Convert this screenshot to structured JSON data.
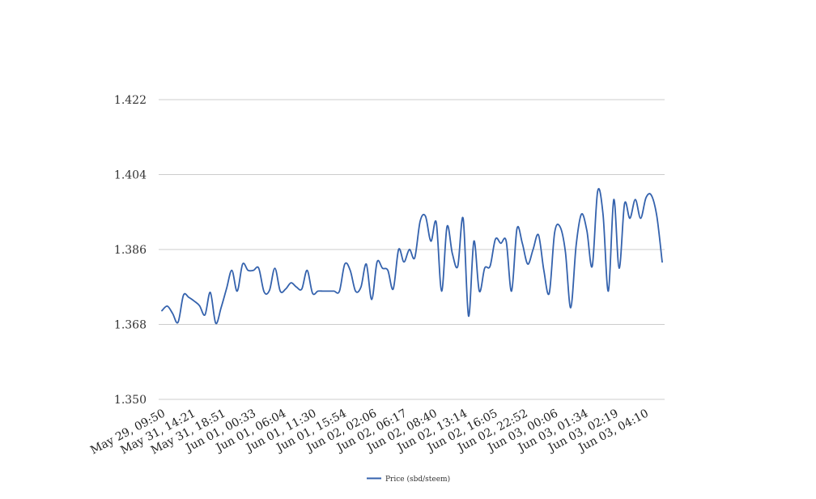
{
  "chart_data": {
    "type": "line",
    "title": "",
    "xlabel": "",
    "ylabel": "",
    "ylim": [
      1.35,
      1.422
    ],
    "yticks": [
      "1.350",
      "1.368",
      "1.386",
      "1.404",
      "1.422"
    ],
    "ytick_values": [
      1.35,
      1.368,
      1.386,
      1.404,
      1.422
    ],
    "x_tick_labels": [
      "May 29, 09:50",
      "May 31, 14:21",
      "May 31, 18:51",
      "Jun 01, 00:33",
      "Jun 01, 06:04",
      "Jun 01, 11:30",
      "Jun 01, 15:54",
      "Jun 02, 02:06",
      "Jun 02, 06:17",
      "Jun 02, 08:40",
      "Jun 02, 13:14",
      "Jun 02, 16:05",
      "Jun 02, 22:52",
      "Jun 03, 00:06",
      "Jun 03, 01:34",
      "Jun 03, 02:19",
      "Jun 03, 04:10"
    ],
    "grid": true,
    "legend_position": "bottom-center",
    "series": [
      {
        "name": "Price (sbd/steem)",
        "color": "#3462ad",
        "values": [
          1.3713,
          1.3724,
          1.3706,
          1.3685,
          1.375,
          1.3745,
          1.3736,
          1.3725,
          1.3703,
          1.3757,
          1.3683,
          1.372,
          1.3765,
          1.381,
          1.376,
          1.3825,
          1.381,
          1.381,
          1.3815,
          1.3758,
          1.3762,
          1.3815,
          1.376,
          1.3765,
          1.378,
          1.377,
          1.3765,
          1.381,
          1.3755,
          1.376,
          1.376,
          1.376,
          1.376,
          1.376,
          1.3825,
          1.381,
          1.376,
          1.377,
          1.3825,
          1.374,
          1.383,
          1.3815,
          1.381,
          1.3765,
          1.386,
          1.383,
          1.386,
          1.384,
          1.3928,
          1.394,
          1.388,
          1.3925,
          1.376,
          1.3915,
          1.385,
          1.382,
          1.3935,
          1.37,
          1.388,
          1.376,
          1.3815,
          1.382,
          1.3885,
          1.3875,
          1.388,
          1.376,
          1.391,
          1.3875,
          1.3825,
          1.386,
          1.3895,
          1.381,
          1.3755,
          1.39,
          1.3915,
          1.3855,
          1.372,
          1.387,
          1.3945,
          1.3905,
          1.382,
          1.4,
          1.3945,
          1.376,
          1.398,
          1.3815,
          1.397,
          1.3935,
          1.398,
          1.3935,
          1.3985,
          1.399,
          1.394,
          1.383
        ]
      }
    ]
  }
}
